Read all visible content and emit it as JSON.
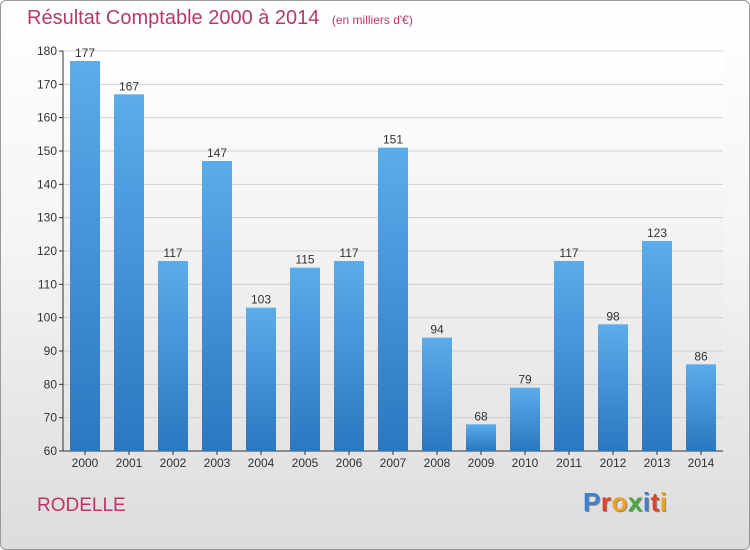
{
  "chart_data": {
    "type": "bar",
    "title": "Résultat Comptable 2000 à 2014",
    "subtitle": "(en milliers d'€)",
    "categories": [
      "2000",
      "2001",
      "2002",
      "2003",
      "2004",
      "2005",
      "2006",
      "2007",
      "2008",
      "2009",
      "2010",
      "2011",
      "2012",
      "2013",
      "2014"
    ],
    "values": [
      177,
      167,
      117,
      147,
      103,
      115,
      117,
      151,
      94,
      68,
      79,
      117,
      98,
      123,
      86
    ],
    "ylim": [
      60,
      180
    ],
    "yticks": [
      60,
      70,
      80,
      90,
      100,
      110,
      120,
      130,
      140,
      150,
      160,
      170,
      180
    ],
    "grid": true,
    "bar_color": "#3d8fd6"
  },
  "commune": "RODELLE",
  "logo": {
    "letters": [
      {
        "ch": "P",
        "color": "#3d7fd1"
      },
      {
        "ch": "r",
        "color": "#e0432b"
      },
      {
        "ch": "o",
        "color": "#f2a21a"
      },
      {
        "ch": "x",
        "color": "#4aa83c"
      },
      {
        "ch": "i",
        "color": "#3d7fd1"
      },
      {
        "ch": "t",
        "color": "#e0432b"
      },
      {
        "ch": "i",
        "color": "#f2a21a"
      }
    ]
  },
  "colors": {
    "title": "#b53a6b",
    "commune": "#c0336a",
    "axis": "#333333",
    "grid": "#d0d0d0"
  }
}
